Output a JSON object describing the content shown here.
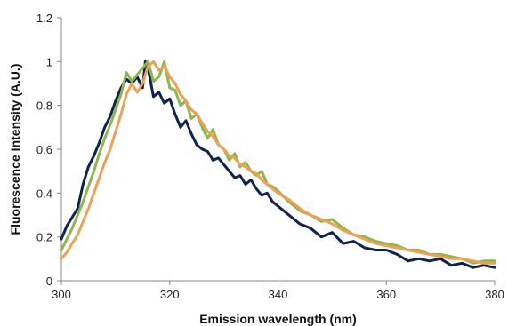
{
  "chart_data": {
    "type": "line",
    "title": "",
    "xlabel": "Emission wavelength (nm)",
    "ylabel": "Fluorescence Intensity (A.U.)",
    "xlim": [
      300,
      380
    ],
    "ylim": [
      0,
      1.2
    ],
    "x_ticks": [
      300,
      320,
      340,
      360,
      380
    ],
    "y_ticks": [
      0,
      0.2,
      0.4,
      0.6,
      0.8,
      1,
      1.2
    ],
    "x_tick_labels": [
      "300",
      "320",
      "340",
      "360",
      "380"
    ],
    "y_tick_labels": [
      "0",
      "0.2",
      "0.4",
      "0.6",
      "0.8",
      "1",
      "1.2"
    ],
    "grid": false,
    "legend": "none",
    "series": [
      {
        "color": "#0f2350",
        "x": [
          300,
          301,
          302,
          303,
          304,
          305,
          306,
          307,
          308,
          309,
          310,
          311,
          312,
          313,
          314,
          315,
          315.5,
          316,
          317,
          318,
          319,
          320,
          321,
          322,
          323,
          324,
          325,
          326,
          327,
          328,
          329,
          330,
          331,
          332,
          333,
          334,
          335,
          336,
          337,
          338,
          339,
          340,
          342,
          344,
          346,
          348,
          350,
          352,
          354,
          356,
          358,
          360,
          362,
          364,
          366,
          368,
          370,
          372,
          374,
          376,
          378,
          380
        ],
        "y": [
          0.19,
          0.25,
          0.29,
          0.33,
          0.44,
          0.52,
          0.57,
          0.63,
          0.7,
          0.75,
          0.82,
          0.88,
          0.92,
          0.9,
          0.93,
          0.88,
          1.0,
          0.97,
          0.84,
          0.86,
          0.81,
          0.83,
          0.76,
          0.7,
          0.73,
          0.67,
          0.62,
          0.6,
          0.59,
          0.55,
          0.56,
          0.53,
          0.5,
          0.47,
          0.48,
          0.44,
          0.46,
          0.42,
          0.39,
          0.4,
          0.36,
          0.34,
          0.3,
          0.26,
          0.24,
          0.2,
          0.22,
          0.17,
          0.18,
          0.15,
          0.14,
          0.14,
          0.12,
          0.09,
          0.1,
          0.09,
          0.1,
          0.07,
          0.08,
          0.06,
          0.07,
          0.06
        ]
      },
      {
        "color": "#8bb84a",
        "x": [
          300,
          301,
          302,
          303,
          304,
          305,
          306,
          307,
          308,
          309,
          310,
          311,
          312,
          313,
          314,
          315,
          316,
          317,
          318,
          319,
          320,
          321,
          322,
          323,
          324,
          325,
          326,
          327,
          328,
          329,
          330,
          331,
          332,
          333,
          334,
          335,
          336,
          337,
          338,
          339,
          340,
          342,
          344,
          346,
          348,
          350,
          352,
          354,
          356,
          358,
          360,
          362,
          364,
          366,
          368,
          370,
          372,
          374,
          376,
          378,
          380
        ],
        "y": [
          0.14,
          0.19,
          0.24,
          0.3,
          0.36,
          0.43,
          0.5,
          0.58,
          0.65,
          0.71,
          0.78,
          0.85,
          0.95,
          0.91,
          0.94,
          0.97,
          1.0,
          0.91,
          0.93,
          1.0,
          0.88,
          0.87,
          0.8,
          0.82,
          0.74,
          0.76,
          0.7,
          0.65,
          0.69,
          0.62,
          0.6,
          0.55,
          0.58,
          0.52,
          0.54,
          0.5,
          0.48,
          0.5,
          0.44,
          0.43,
          0.41,
          0.36,
          0.32,
          0.3,
          0.27,
          0.28,
          0.24,
          0.21,
          0.2,
          0.18,
          0.17,
          0.16,
          0.14,
          0.14,
          0.12,
          0.12,
          0.11,
          0.1,
          0.08,
          0.09,
          0.09
        ]
      },
      {
        "color": "#f0a055",
        "x": [
          300,
          301,
          302,
          303,
          304,
          305,
          306,
          307,
          308,
          309,
          310,
          311,
          312,
          313,
          314,
          315,
          316,
          317,
          318,
          319,
          320,
          321,
          322,
          323,
          324,
          325,
          326,
          327,
          328,
          329,
          330,
          331,
          332,
          333,
          334,
          335,
          336,
          337,
          338,
          339,
          340,
          342,
          344,
          346,
          348,
          350,
          352,
          354,
          356,
          358,
          360,
          362,
          364,
          366,
          368,
          370,
          372,
          374,
          376,
          378,
          380
        ],
        "y": [
          0.1,
          0.13,
          0.17,
          0.21,
          0.27,
          0.33,
          0.4,
          0.47,
          0.54,
          0.6,
          0.68,
          0.76,
          0.85,
          0.9,
          0.86,
          0.9,
          0.98,
          1.0,
          0.96,
          0.98,
          0.93,
          0.9,
          0.85,
          0.82,
          0.78,
          0.76,
          0.72,
          0.68,
          0.66,
          0.62,
          0.6,
          0.57,
          0.56,
          0.53,
          0.52,
          0.5,
          0.49,
          0.46,
          0.44,
          0.42,
          0.4,
          0.37,
          0.33,
          0.3,
          0.28,
          0.26,
          0.23,
          0.21,
          0.19,
          0.17,
          0.16,
          0.15,
          0.14,
          0.13,
          0.12,
          0.11,
          0.1,
          0.1,
          0.09,
          0.08,
          0.08
        ]
      }
    ]
  }
}
